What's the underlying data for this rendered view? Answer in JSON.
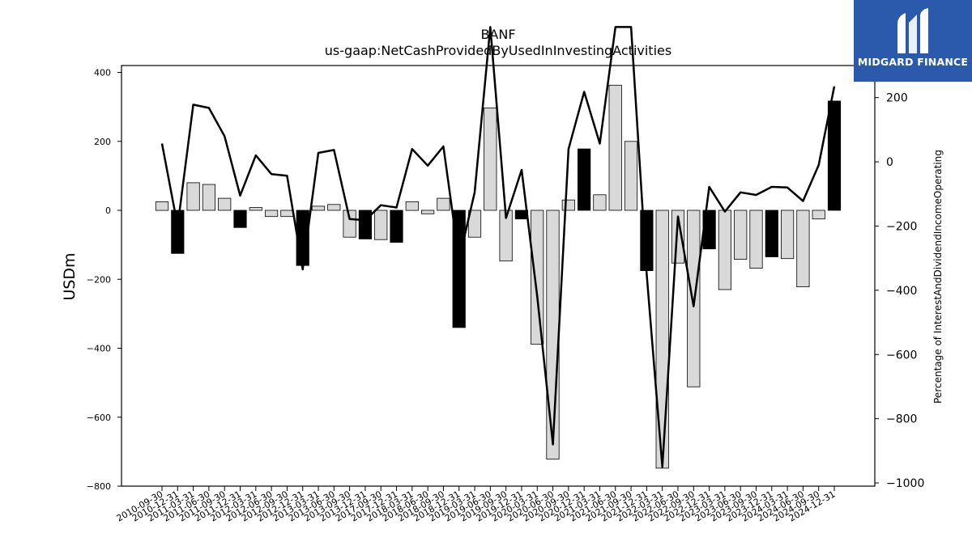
{
  "brand": {
    "name": "MIDGARD FINANCE",
    "color": "#2b5aad"
  },
  "chart_data": {
    "type": "bar+line",
    "title": "BANF",
    "subtitle": "us-gaap:NetCashProvidedByUsedInInvestingActivities",
    "ylabel": "USDm",
    "y2label": "Percentage of InterestAndDividendIncomeOperating",
    "ylim": [
      -800,
      420
    ],
    "y2lim": [
      -1010,
      300
    ],
    "yticks": [
      -800,
      -600,
      -400,
      -200,
      0,
      200,
      400
    ],
    "y2ticks": [
      -1000,
      -800,
      -600,
      -400,
      -200,
      0,
      200
    ],
    "grid": false,
    "colors": {
      "positive_year_end": "#000000",
      "other_quarter": "#d9d9d9",
      "line": "#000000"
    },
    "categories": [
      "2010-09-30",
      "2010-12-31",
      "2011-03-31",
      "2011-06-30",
      "2011-09-30",
      "2011-12-31",
      "2012-03-31",
      "2012-06-30",
      "2012-09-30",
      "2012-12-31",
      "2013-03-31",
      "2013-06-30",
      "2013-09-30",
      "2013-12-31",
      "2017-09-30",
      "2017-12-31",
      "2018-03-31",
      "2018-06-30",
      "2018-09-30",
      "2018-12-31",
      "2019-03-31",
      "2019-06-30",
      "2019-09-30",
      "2019-12-31",
      "2020-03-31",
      "2020-06-30",
      "2020-09-30",
      "2020-12-31",
      "2021-03-31",
      "2021-06-30",
      "2021-09-30",
      "2021-12-31",
      "2022-03-31",
      "2022-06-30",
      "2022-09-30",
      "2022-12-31",
      "2023-03-31",
      "2023-06-30",
      "2023-09-30",
      "2023-12-31",
      "2024-03-31",
      "2024-06-30",
      "2024-09-30",
      "2024-12-31"
    ],
    "series": [
      {
        "kind": "bar",
        "axis": "left",
        "values": [
          25,
          -125,
          80,
          75,
          35,
          -50,
          8,
          -18,
          -18,
          -160,
          12,
          17,
          -78,
          -83,
          -85,
          -93,
          25,
          -10,
          35,
          -340,
          -78,
          297,
          -147,
          -25,
          -388,
          -722,
          30,
          178,
          45,
          363,
          200,
          -175,
          -748,
          -153,
          -512,
          -112,
          -230,
          -142,
          -168,
          -135,
          -140,
          -222,
          -25,
          317
        ],
        "highlight": [
          false,
          true,
          false,
          false,
          false,
          true,
          false,
          false,
          false,
          true,
          false,
          false,
          false,
          true,
          false,
          true,
          false,
          false,
          false,
          true,
          false,
          false,
          false,
          true,
          false,
          false,
          false,
          true,
          false,
          false,
          false,
          true,
          false,
          false,
          false,
          true,
          false,
          false,
          false,
          true,
          false,
          false,
          false,
          true
        ]
      },
      {
        "kind": "line",
        "axis": "right",
        "values": [
          57,
          -200,
          178,
          168,
          80,
          -105,
          20,
          -38,
          -43,
          -335,
          28,
          37,
          -178,
          -182,
          -135,
          -142,
          40,
          -12,
          48,
          -305,
          -95,
          420,
          -175,
          -25,
          -420,
          -880,
          40,
          218,
          57,
          420,
          420,
          -350,
          -950,
          -170,
          -450,
          -78,
          -155,
          -95,
          -103,
          -78,
          -80,
          -122,
          -10,
          235
        ]
      }
    ]
  }
}
